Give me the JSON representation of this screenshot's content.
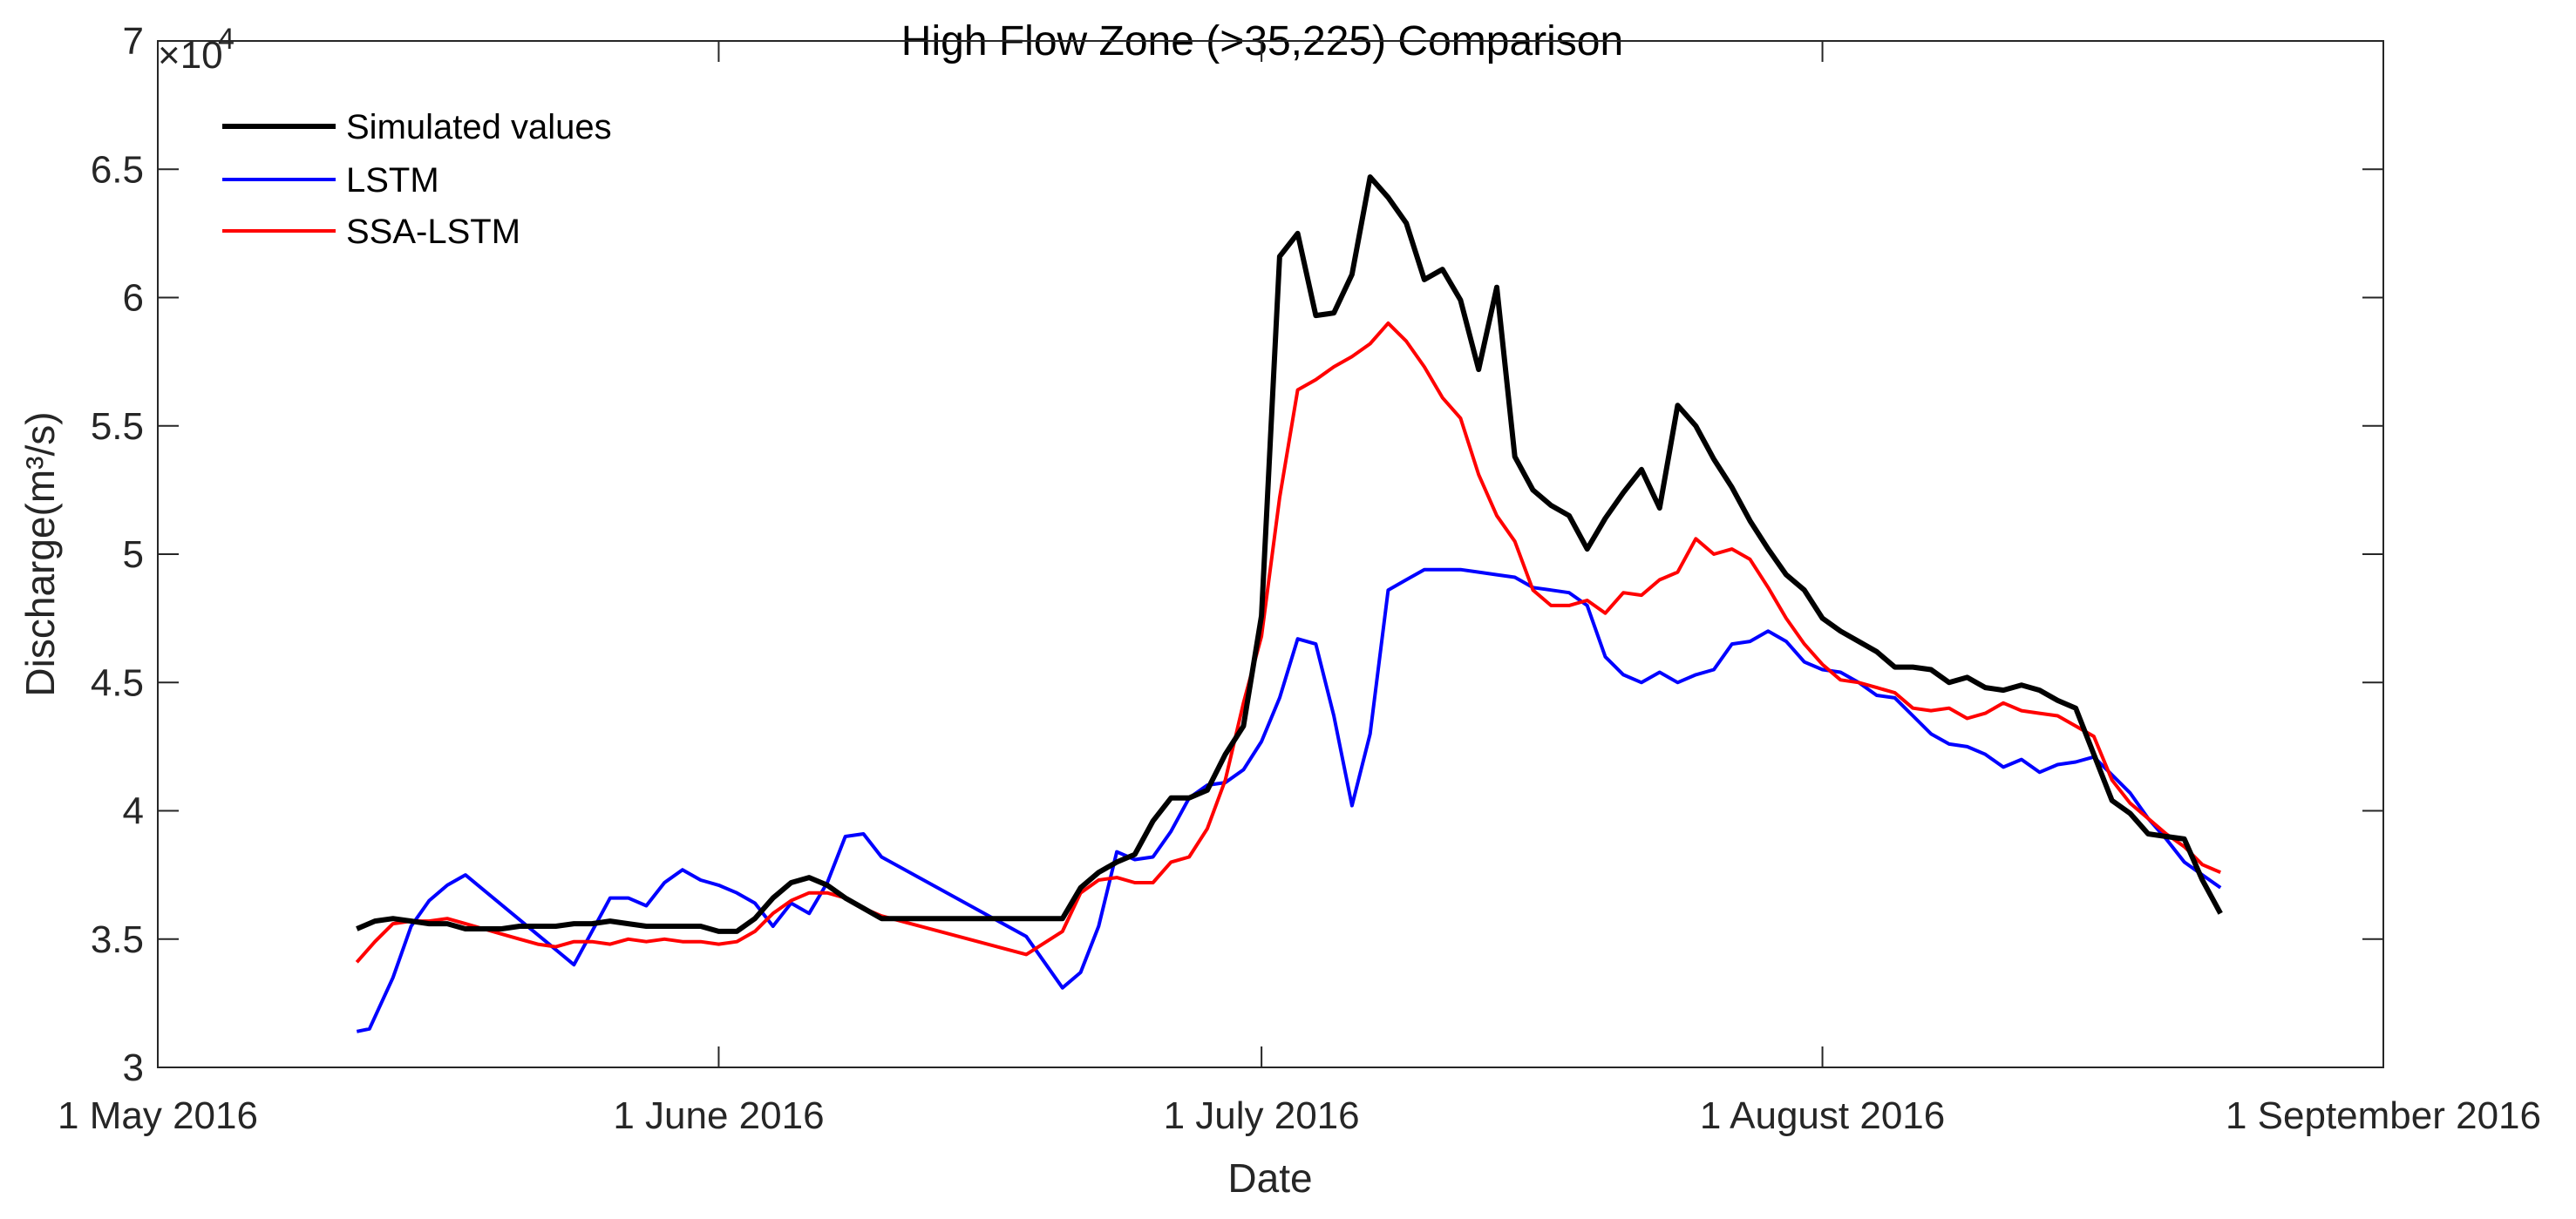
{
  "chart_data": {
    "type": "line",
    "title": "High Flow Zone (>35,225) Comparison",
    "xlabel": "Date",
    "ylabel": "Discharge(m³/s)",
    "y_multiplier": "×10",
    "y_exponent": "4",
    "ylim": [
      3,
      7
    ],
    "xlim_days": [
      0,
      123
    ],
    "x_ticks": [
      {
        "day": 0,
        "label": "1 May 2016"
      },
      {
        "day": 31,
        "label": "1 June 2016"
      },
      {
        "day": 61,
        "label": "1 July 2016"
      },
      {
        "day": 92,
        "label": "1 August 2016"
      },
      {
        "day": 123,
        "label": "1 September 2016"
      }
    ],
    "y_ticks": [
      {
        "value": 3,
        "label": "3"
      },
      {
        "value": 3.5,
        "label": "3.5"
      },
      {
        "value": 4,
        "label": "4"
      },
      {
        "value": 4.5,
        "label": "4.5"
      },
      {
        "value": 5,
        "label": "5"
      },
      {
        "value": 5.5,
        "label": "5.5"
      },
      {
        "value": 6,
        "label": "6"
      },
      {
        "value": 6.5,
        "label": "6.5"
      },
      {
        "value": 7,
        "label": "7"
      }
    ],
    "series": [
      {
        "name": "Simulated values",
        "color": "#000000",
        "points": [
          [
            11,
            3.54
          ],
          [
            12,
            3.57
          ],
          [
            13,
            3.58
          ],
          [
            14,
            3.57
          ],
          [
            15,
            3.56
          ],
          [
            16,
            3.56
          ],
          [
            17,
            3.54
          ],
          [
            18,
            3.54
          ],
          [
            19,
            3.54
          ],
          [
            20,
            3.55
          ],
          [
            21,
            3.55
          ],
          [
            22,
            3.55
          ],
          [
            23,
            3.56
          ],
          [
            24,
            3.56
          ],
          [
            25,
            3.57
          ],
          [
            26,
            3.56
          ],
          [
            27,
            3.55
          ],
          [
            28,
            3.55
          ],
          [
            29,
            3.55
          ],
          [
            30,
            3.55
          ],
          [
            31,
            3.53
          ],
          [
            32,
            3.53
          ],
          [
            33,
            3.58
          ],
          [
            34,
            3.66
          ],
          [
            35,
            3.72
          ],
          [
            36,
            3.74
          ],
          [
            37,
            3.71
          ],
          [
            38,
            3.66
          ],
          [
            39,
            3.62
          ],
          [
            40,
            3.58
          ],
          [
            48,
            3.58
          ],
          [
            50,
            3.58
          ],
          [
            51,
            3.7
          ],
          [
            52,
            3.76
          ],
          [
            53,
            3.8
          ],
          [
            54,
            3.83
          ],
          [
            55,
            3.96
          ],
          [
            56,
            4.05
          ],
          [
            57,
            4.05
          ],
          [
            58,
            4.08
          ],
          [
            59,
            4.22
          ],
          [
            60,
            4.33
          ],
          [
            61,
            4.76
          ],
          [
            62,
            6.16
          ],
          [
            63,
            6.25
          ],
          [
            64,
            5.93
          ],
          [
            65,
            5.94
          ],
          [
            66,
            6.09
          ],
          [
            67,
            6.47
          ],
          [
            68,
            6.39
          ],
          [
            69,
            6.29
          ],
          [
            70,
            6.07
          ],
          [
            71,
            6.11
          ],
          [
            72,
            5.99
          ],
          [
            73,
            5.72
          ],
          [
            74,
            6.04
          ],
          [
            75,
            5.38
          ],
          [
            76,
            5.25
          ],
          [
            77,
            5.19
          ],
          [
            78,
            5.15
          ],
          [
            79,
            5.02
          ],
          [
            80,
            5.14
          ],
          [
            81,
            5.24
          ],
          [
            82,
            5.33
          ],
          [
            83,
            5.18
          ],
          [
            84,
            5.58
          ],
          [
            85,
            5.5
          ],
          [
            86,
            5.37
          ],
          [
            87,
            5.26
          ],
          [
            88,
            5.13
          ],
          [
            89,
            5.02
          ],
          [
            90,
            4.92
          ],
          [
            91,
            4.86
          ],
          [
            92,
            4.75
          ],
          [
            93,
            4.7
          ],
          [
            94,
            4.66
          ],
          [
            95,
            4.62
          ],
          [
            96,
            4.56
          ],
          [
            97,
            4.56
          ],
          [
            98,
            4.55
          ],
          [
            99,
            4.5
          ],
          [
            100,
            4.52
          ],
          [
            101,
            4.48
          ],
          [
            102,
            4.47
          ],
          [
            103,
            4.49
          ],
          [
            104,
            4.47
          ],
          [
            105,
            4.43
          ],
          [
            106,
            4.4
          ],
          [
            107,
            4.22
          ],
          [
            108,
            4.04
          ],
          [
            109,
            3.99
          ],
          [
            110,
            3.91
          ],
          [
            111,
            3.9
          ],
          [
            112,
            3.89
          ],
          [
            113,
            3.73
          ],
          [
            114,
            3.6
          ]
        ]
      },
      {
        "name": "LSTM",
        "color": "#0000ff",
        "points": [
          [
            11,
            3.14
          ],
          [
            11.7,
            3.15
          ],
          [
            13,
            3.35
          ],
          [
            14,
            3.55
          ],
          [
            15,
            3.65
          ],
          [
            16,
            3.71
          ],
          [
            17,
            3.75
          ],
          [
            23,
            3.4
          ],
          [
            25,
            3.66
          ],
          [
            26,
            3.66
          ],
          [
            27,
            3.63
          ],
          [
            28,
            3.72
          ],
          [
            29,
            3.77
          ],
          [
            30,
            3.73
          ],
          [
            31,
            3.71
          ],
          [
            32,
            3.68
          ],
          [
            33,
            3.64
          ],
          [
            34,
            3.55
          ],
          [
            35,
            3.64
          ],
          [
            36,
            3.6
          ],
          [
            37,
            3.72
          ],
          [
            38,
            3.9
          ],
          [
            39,
            3.91
          ],
          [
            40,
            3.82
          ],
          [
            48,
            3.51
          ],
          [
            50,
            3.31
          ],
          [
            51,
            3.37
          ],
          [
            52,
            3.55
          ],
          [
            53,
            3.84
          ],
          [
            54,
            3.81
          ],
          [
            55,
            3.82
          ],
          [
            56,
            3.92
          ],
          [
            57,
            4.05
          ],
          [
            58,
            4.1
          ],
          [
            59,
            4.11
          ],
          [
            60,
            4.16
          ],
          [
            61,
            4.27
          ],
          [
            62,
            4.44
          ],
          [
            63,
            4.67
          ],
          [
            64,
            4.65
          ],
          [
            65,
            4.37
          ],
          [
            66,
            4.02
          ],
          [
            67,
            4.3
          ],
          [
            68,
            4.86
          ],
          [
            69,
            4.9
          ],
          [
            70,
            4.94
          ],
          [
            71,
            4.94
          ],
          [
            72,
            4.94
          ],
          [
            73,
            4.93
          ],
          [
            74,
            4.92
          ],
          [
            75,
            4.91
          ],
          [
            76,
            4.87
          ],
          [
            77,
            4.86
          ],
          [
            78,
            4.85
          ],
          [
            79,
            4.8
          ],
          [
            80,
            4.6
          ],
          [
            81,
            4.53
          ],
          [
            82,
            4.5
          ],
          [
            83,
            4.54
          ],
          [
            84,
            4.5
          ],
          [
            85,
            4.53
          ],
          [
            86,
            4.55
          ],
          [
            87,
            4.65
          ],
          [
            88,
            4.66
          ],
          [
            89,
            4.7
          ],
          [
            90,
            4.66
          ],
          [
            91,
            4.58
          ],
          [
            92,
            4.55
          ],
          [
            93,
            4.54
          ],
          [
            94,
            4.5
          ],
          [
            95,
            4.45
          ],
          [
            96,
            4.44
          ],
          [
            97,
            4.37
          ],
          [
            98,
            4.3
          ],
          [
            99,
            4.26
          ],
          [
            100,
            4.25
          ],
          [
            101,
            4.22
          ],
          [
            102,
            4.17
          ],
          [
            103,
            4.2
          ],
          [
            104,
            4.15
          ],
          [
            105,
            4.18
          ],
          [
            106,
            4.19
          ],
          [
            107,
            4.21
          ],
          [
            108,
            4.14
          ],
          [
            109,
            4.07
          ],
          [
            110,
            3.97
          ],
          [
            111,
            3.89
          ],
          [
            112,
            3.8
          ],
          [
            113,
            3.75
          ],
          [
            114,
            3.7
          ]
        ]
      },
      {
        "name": "SSA-LSTM",
        "color": "#ff0000",
        "points": [
          [
            11,
            3.41
          ],
          [
            12,
            3.49
          ],
          [
            13,
            3.56
          ],
          [
            14,
            3.57
          ],
          [
            15,
            3.57
          ],
          [
            16,
            3.58
          ],
          [
            17,
            3.56
          ],
          [
            18,
            3.54
          ],
          [
            19,
            3.52
          ],
          [
            20,
            3.5
          ],
          [
            21,
            3.48
          ],
          [
            22,
            3.47
          ],
          [
            23,
            3.49
          ],
          [
            24,
            3.49
          ],
          [
            25,
            3.48
          ],
          [
            26,
            3.5
          ],
          [
            27,
            3.49
          ],
          [
            28,
            3.5
          ],
          [
            29,
            3.49
          ],
          [
            30,
            3.49
          ],
          [
            31,
            3.48
          ],
          [
            32,
            3.49
          ],
          [
            33,
            3.53
          ],
          [
            34,
            3.6
          ],
          [
            35,
            3.65
          ],
          [
            36,
            3.68
          ],
          [
            37,
            3.68
          ],
          [
            38,
            3.66
          ],
          [
            39,
            3.62
          ],
          [
            40,
            3.59
          ],
          [
            48,
            3.44
          ],
          [
            50,
            3.53
          ],
          [
            51,
            3.68
          ],
          [
            52,
            3.73
          ],
          [
            53,
            3.74
          ],
          [
            54,
            3.72
          ],
          [
            55,
            3.72
          ],
          [
            56,
            3.8
          ],
          [
            57,
            3.82
          ],
          [
            58,
            3.93
          ],
          [
            59,
            4.12
          ],
          [
            60,
            4.42
          ],
          [
            61,
            4.68
          ],
          [
            62,
            5.22
          ],
          [
            63,
            5.64
          ],
          [
            64,
            5.68
          ],
          [
            65,
            5.73
          ],
          [
            66,
            5.77
          ],
          [
            67,
            5.82
          ],
          [
            68,
            5.9
          ],
          [
            69,
            5.83
          ],
          [
            70,
            5.73
          ],
          [
            71,
            5.61
          ],
          [
            72,
            5.53
          ],
          [
            73,
            5.31
          ],
          [
            74,
            5.15
          ],
          [
            75,
            5.05
          ],
          [
            76,
            4.86
          ],
          [
            77,
            4.8
          ],
          [
            78,
            4.8
          ],
          [
            79,
            4.82
          ],
          [
            80,
            4.77
          ],
          [
            81,
            4.85
          ],
          [
            82,
            4.84
          ],
          [
            83,
            4.9
          ],
          [
            84,
            4.93
          ],
          [
            85,
            5.06
          ],
          [
            86,
            5.0
          ],
          [
            87,
            5.02
          ],
          [
            88,
            4.98
          ],
          [
            89,
            4.87
          ],
          [
            90,
            4.75
          ],
          [
            91,
            4.65
          ],
          [
            92,
            4.57
          ],
          [
            93,
            4.51
          ],
          [
            94,
            4.5
          ],
          [
            95,
            4.48
          ],
          [
            96,
            4.46
          ],
          [
            97,
            4.4
          ],
          [
            98,
            4.39
          ],
          [
            99,
            4.4
          ],
          [
            100,
            4.36
          ],
          [
            101,
            4.38
          ],
          [
            102,
            4.42
          ],
          [
            103,
            4.39
          ],
          [
            104,
            4.38
          ],
          [
            105,
            4.37
          ],
          [
            106,
            4.33
          ],
          [
            107,
            4.29
          ],
          [
            108,
            4.12
          ],
          [
            109,
            4.03
          ],
          [
            110,
            3.97
          ],
          [
            111,
            3.91
          ],
          [
            112,
            3.86
          ],
          [
            113,
            3.79
          ],
          [
            114,
            3.76
          ]
        ]
      }
    ]
  }
}
